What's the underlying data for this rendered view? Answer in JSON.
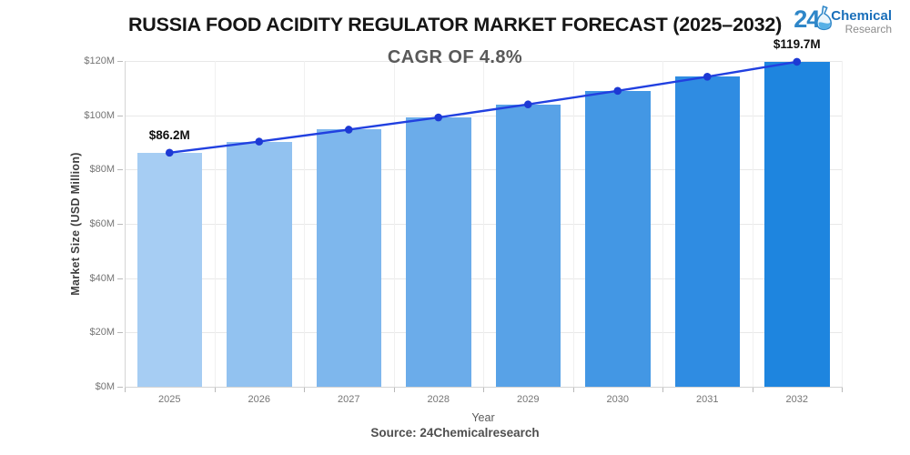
{
  "header": {
    "title": "RUSSIA FOOD ACIDITY REGULATOR MARKET FORECAST (2025–2032)",
    "subtitle": "CAGR OF 4.8%"
  },
  "logo": {
    "number": "24",
    "name_top": "Chemical",
    "name_bottom": "Research",
    "flask_icon": "erlenmeyer-flask-icon",
    "accent_blue": "#2E86C8",
    "text_blue": "#1A6FBA",
    "text_gray": "#8C8C8C"
  },
  "chart_data": {
    "type": "bar",
    "overlay": "line",
    "title": "RUSSIA FOOD ACIDITY REGULATOR MARKET FORECAST (2025–2032)",
    "subtitle": "CAGR OF 4.8%",
    "xlabel": "Year",
    "ylabel": "Market Size (USD Million)",
    "categories": [
      "2025",
      "2026",
      "2027",
      "2028",
      "2029",
      "2030",
      "2031",
      "2032"
    ],
    "values": [
      86.2,
      90.3,
      94.7,
      99.2,
      104.0,
      109.0,
      114.2,
      119.7
    ],
    "ylim": [
      0,
      120
    ],
    "yticks": [
      0,
      20,
      40,
      60,
      80,
      100,
      120
    ],
    "ytick_labels": [
      "$0M",
      "$20M",
      "$40M",
      "$60M",
      "$80M",
      "$100M",
      "$120M"
    ],
    "grid": true,
    "legend": "none",
    "bar_colors": [
      "#A6CDF3",
      "#92C2F0",
      "#7EB7ED",
      "#6BACEA",
      "#58A2E7",
      "#4397E4",
      "#2F8CE2",
      "#1E85DF"
    ],
    "line_color": "#2140E0",
    "marker_color": "#1D39D4",
    "data_labels": [
      {
        "index": 0,
        "text": "$86.2M"
      },
      {
        "index": 7,
        "text": "$119.7M"
      }
    ]
  },
  "footer": {
    "source": "Source: 24Chemicalresearch"
  }
}
